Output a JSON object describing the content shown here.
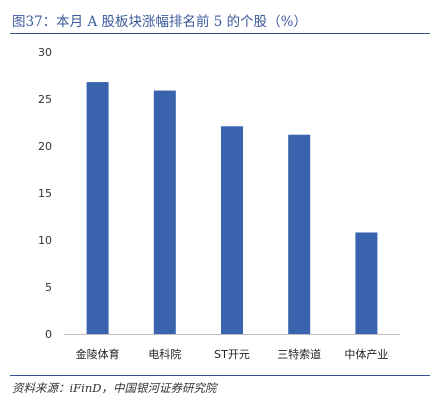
{
  "header": {
    "title": "图37：本月 A 股板块涨幅排名前 5 的个股（%）"
  },
  "footer": {
    "source": "资料来源：iFinD，中国银河证券研究院"
  },
  "chart_data": {
    "type": "bar",
    "categories": [
      "金陵体育",
      "电科院",
      "ST开元",
      "三特索道",
      "中体产业"
    ],
    "values": [
      26.8,
      25.9,
      22.1,
      21.2,
      10.8
    ],
    "ylim": [
      0,
      30
    ],
    "yticks": [
      0,
      5,
      10,
      15,
      20,
      25,
      30
    ],
    "grid": false,
    "bar_color": "#3a63ad"
  }
}
